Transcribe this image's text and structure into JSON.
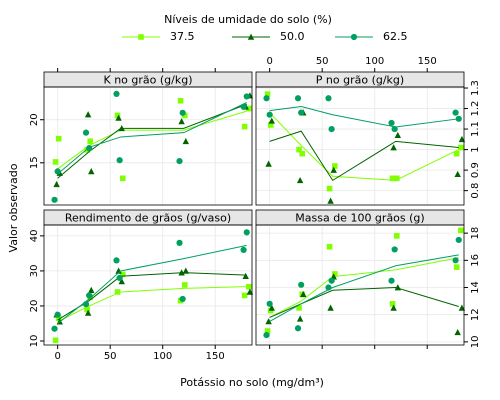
{
  "chart_data": {
    "type": "scatter",
    "legend": {
      "title": "Níveis de umidade do solo (%)",
      "items": [
        {
          "name": "37.5",
          "color": "#80ff00",
          "marker": "square"
        },
        {
          "name": "50.0",
          "color": "#006400",
          "marker": "triangle"
        },
        {
          "name": "62.5",
          "color": "#00a060",
          "marker": "circle"
        }
      ]
    },
    "ylabel": "Valor observado",
    "xlabel": "Potássio no solo (mg/dm³)",
    "xlim": [
      -13,
      185
    ],
    "xticks": [
      0,
      50,
      100,
      150
    ],
    "grid": true,
    "doses": [
      0,
      30,
      60,
      120,
      180
    ],
    "panels": [
      {
        "title": "K no grão (g/kg)",
        "ylim": [
          10.1,
          23.8
        ],
        "yticks": [
          15,
          20
        ],
        "series": [
          {
            "x": [
              -2,
              1,
              28,
              31,
              57,
              62,
              117,
              121,
              178,
              182
            ],
            "values": [
              15.1,
              17.8,
              16.5,
              17.5,
              20.5,
              13.2,
              22.2,
              20.5,
              19.2,
              21.3
            ],
            "means": [
              14.3,
              17.0,
              18.8,
              18.8,
              21.0
            ]
          },
          {
            "x": [
              -1,
              2,
              29,
              32,
              58,
              61,
              118,
              122,
              179,
              183
            ],
            "values": [
              12.5,
              13.8,
              20.6,
              14.0,
              20.2,
              19.0,
              19.8,
              17.5,
              21.5,
              22.8
            ],
            "means": [
              13.2,
              16.3,
              19.0,
              19.0,
              21.8
            ]
          },
          {
            "x": [
              -3,
              0,
              27,
              30,
              56,
              59,
              116,
              119,
              177,
              180
            ],
            "values": [
              10.7,
              14.0,
              18.5,
              16.7,
              23.0,
              15.3,
              15.2,
              20.8,
              21.5,
              22.7
            ],
            "means": [
              13.7,
              16.8,
              18.0,
              18.5,
              22.0
            ]
          }
        ]
      },
      {
        "title": "P no grão (g/kg)",
        "ylim": [
          0.73,
          1.305
        ],
        "yticks": [
          0.8,
          0.9,
          1.0,
          1.1,
          1.2,
          1.3
        ],
        "series": [
          {
            "x": [
              -2,
              1,
              28,
              31,
              57,
              62,
              117,
              121,
              178,
              182
            ],
            "values": [
              1.27,
              1.12,
              1.0,
              0.98,
              0.81,
              0.92,
              0.86,
              0.86,
              0.98,
              1.01
            ],
            "means": [
              1.18,
              1.02,
              0.87,
              0.85,
              1.0
            ]
          },
          {
            "x": [
              -1,
              2,
              29,
              32,
              58,
              61,
              118,
              122,
              179,
              183
            ],
            "values": [
              0.93,
              1.14,
              0.85,
              1.18,
              0.75,
              0.9,
              1.01,
              1.07,
              0.88,
              1.05
            ],
            "means": [
              1.04,
              1.09,
              0.85,
              1.04,
              1.01
            ]
          },
          {
            "x": [
              -3,
              0,
              27,
              30,
              56,
              59,
              116,
              119,
              177,
              180
            ],
            "values": [
              1.25,
              1.17,
              1.25,
              1.18,
              1.25,
              1.1,
              1.13,
              1.1,
              1.18,
              1.15
            ],
            "means": [
              1.19,
              1.21,
              1.17,
              1.11,
              1.15
            ]
          }
        ]
      },
      {
        "title": "Rendimento de grãos (g/vaso)",
        "ylim": [
          8.86,
          43.1
        ],
        "yticks": [
          10,
          20,
          30,
          40
        ],
        "series": [
          {
            "x": [
              -2,
              1,
              28,
              31,
              57,
              62,
              117,
              121,
              178,
              182
            ],
            "values": [
              10.2,
              16.5,
              19,
              22.5,
              24,
              29,
              21.5,
              26,
              23,
              25.5
            ],
            "means": [
              15.5,
              20,
              24,
              25,
              25.5
            ]
          },
          {
            "x": [
              -1,
              2,
              29,
              32,
              58,
              61,
              118,
              122,
              179,
              183
            ],
            "values": [
              17.5,
              15.5,
              18,
              24.5,
              30,
              27,
              29.5,
              30,
              28.5,
              24
            ],
            "means": [
              16,
              21.5,
              28.5,
              29.5,
              28.8
            ]
          },
          {
            "x": [
              -3,
              0,
              27,
              30,
              56,
              59,
              116,
              119,
              177,
              180
            ],
            "values": [
              13.5,
              17.5,
              20.5,
              23,
              33,
              28,
              38,
              22,
              36,
              41
            ],
            "means": [
              15,
              22,
              30,
              33.5,
              37.3
            ]
          }
        ]
      },
      {
        "title": "Massa de 100 grãos (g)",
        "ylim": [
          9.77,
          18.6
        ],
        "yticks": [
          10,
          12,
          14,
          16,
          18
        ],
        "series": [
          {
            "x": [
              -2,
              1,
              28,
              31,
              57,
              62,
              117,
              121,
              178,
              182
            ],
            "values": [
              10.8,
              12.3,
              12.5,
              13.5,
              17,
              15,
              12.8,
              17.8,
              15.5,
              18.2
            ],
            "means": [
              11.8,
              13.0,
              14.8,
              15.3,
              16.2
            ]
          },
          {
            "x": [
              -1,
              2,
              29,
              32,
              58,
              61,
              118,
              122,
              179,
              183
            ],
            "values": [
              11.5,
              12.5,
              11.7,
              13.5,
              12.5,
              14.8,
              12.5,
              14.0,
              10.7,
              12.5
            ],
            "means": [
              11.8,
              12.8,
              13.8,
              14.0,
              12.6
            ]
          },
          {
            "x": [
              -3,
              0,
              27,
              30,
              56,
              59,
              116,
              119,
              177,
              180
            ],
            "values": [
              10.5,
              12.8,
              11.0,
              14.2,
              14.0,
              14.5,
              14.5,
              16.8,
              16.0,
              17.5
            ],
            "means": [
              11.5,
              12.8,
              14.0,
              15.6,
              16.4
            ]
          }
        ]
      }
    ]
  }
}
